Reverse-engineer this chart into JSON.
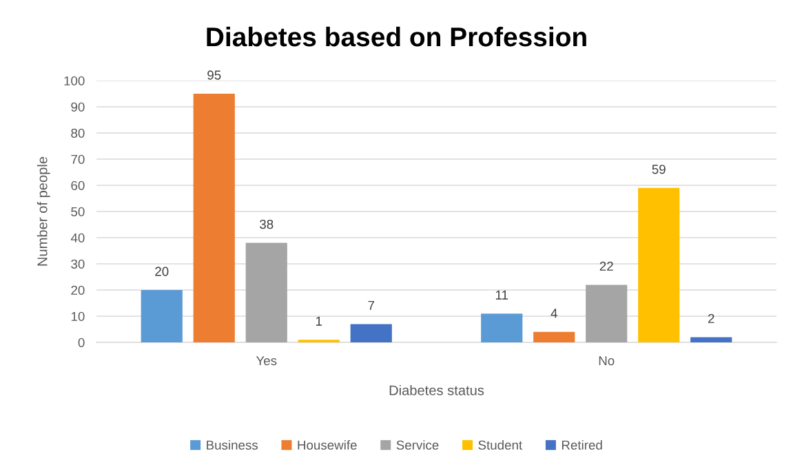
{
  "chart_data": {
    "type": "bar",
    "title": "Diabetes based on Profession",
    "xlabel": "Diabetes status",
    "ylabel": "Number of people",
    "categories": [
      "Yes",
      "No"
    ],
    "series": [
      {
        "name": "Business",
        "color": "#5b9bd5",
        "values": [
          20,
          11
        ]
      },
      {
        "name": "Housewife",
        "color": "#ed7d31",
        "values": [
          95,
          4
        ]
      },
      {
        "name": "Service",
        "color": "#a5a5a5",
        "values": [
          38,
          22
        ]
      },
      {
        "name": "Student",
        "color": "#ffc000",
        "values": [
          1,
          59
        ]
      },
      {
        "name": "Retired",
        "color": "#4472c4",
        "values": [
          7,
          2
        ]
      }
    ],
    "ylim": [
      0,
      100
    ],
    "yticks": [
      0,
      10,
      20,
      30,
      40,
      50,
      60,
      70,
      80,
      90,
      100
    ],
    "grid": "y",
    "legend": "bottom",
    "data_labels": true
  }
}
